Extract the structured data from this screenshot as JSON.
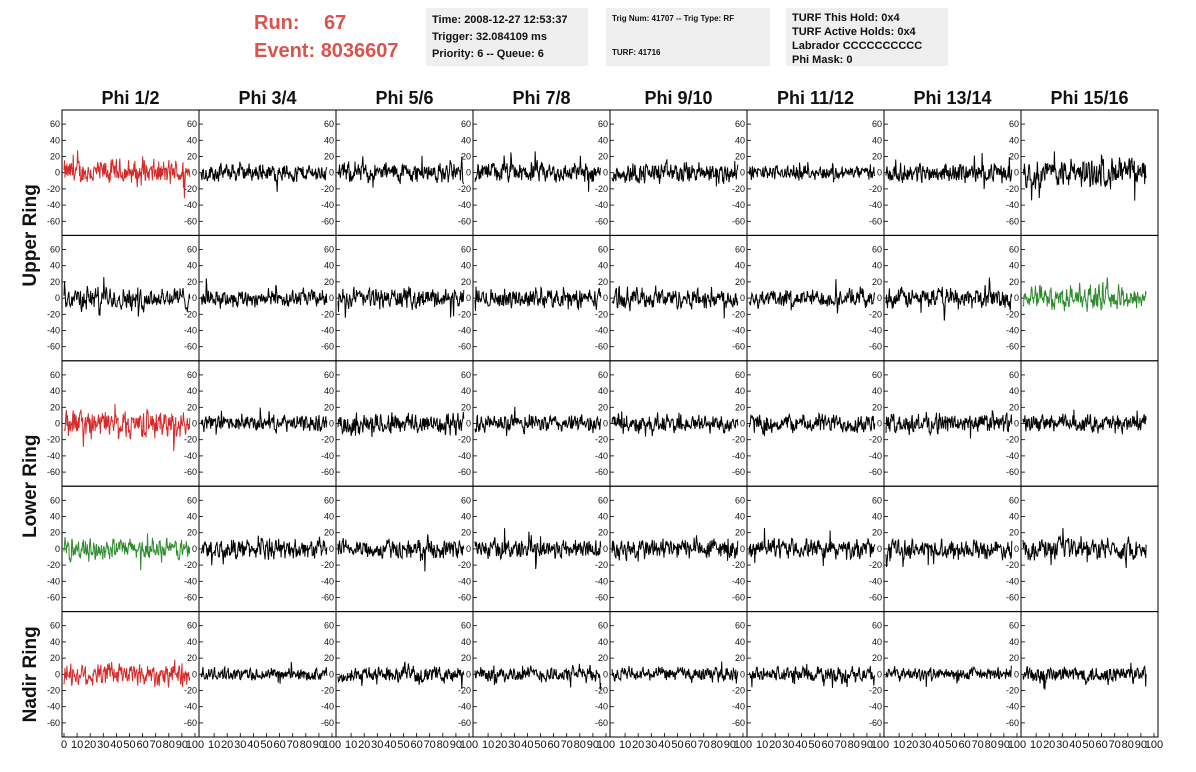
{
  "header": {
    "run_label": "Run:",
    "run_value": "67",
    "event_label": "Event:",
    "event_value": "8036607",
    "time": "Time: 2008-12-27 12:53:37",
    "trigger": "Trigger: 32.084109 ms",
    "priority": "Priority: 6 -- Queue: 6",
    "trig_num": "Trig Num: 41707 -- Trig Type: RF",
    "turf": "TURF: 41716",
    "turf_hold": "TURF This Hold: 0x4",
    "turf_active": "TURF Active Holds: 0x4",
    "labrador": "Labrador CCCCCCCCCC",
    "phi_mask": "Phi Mask: 0"
  },
  "colors": {
    "default": "#000000",
    "red": "#d62a2a",
    "green": "#2e8b2e",
    "accent": "#d9534f"
  },
  "chart_data": {
    "type": "line",
    "description_type": "waveform-grid",
    "columns": [
      "Phi 1/2",
      "Phi 3/4",
      "Phi 5/6",
      "Phi 7/8",
      "Phi 9/10",
      "Phi 11/12",
      "Phi 13/14",
      "Phi 15/16"
    ],
    "ring_labels": [
      "Upper Ring",
      "Lower Ring",
      "Nadir Ring"
    ],
    "rows": 5,
    "ylim": [
      -70,
      70
    ],
    "yticks": [
      -60,
      -40,
      -20,
      0,
      20,
      40,
      60
    ],
    "xlim": [
      0,
      100
    ],
    "xticks": [
      0,
      10,
      20,
      30,
      40,
      50,
      60,
      70,
      80,
      90,
      100
    ],
    "panel_colors": [
      [
        "red",
        "default",
        "default",
        "default",
        "default",
        "default",
        "default",
        "default"
      ],
      [
        "default",
        "default",
        "default",
        "default",
        "default",
        "default",
        "default",
        "green"
      ],
      [
        "red",
        "default",
        "default",
        "default",
        "default",
        "default",
        "default",
        "default"
      ],
      [
        "green",
        "default",
        "default",
        "default",
        "default",
        "default",
        "default",
        "default"
      ],
      [
        "red",
        "default",
        "default",
        "default",
        "default",
        "default",
        "default",
        "default"
      ]
    ],
    "panel_amplitude": [
      [
        18,
        12,
        14,
        14,
        15,
        10,
        13,
        20
      ],
      [
        16,
        12,
        14,
        13,
        14,
        12,
        14,
        16
      ],
      [
        19,
        11,
        16,
        12,
        13,
        13,
        14,
        12
      ],
      [
        14,
        14,
        13,
        14,
        15,
        13,
        13,
        14
      ],
      [
        17,
        9,
        10,
        11,
        10,
        11,
        9,
        12
      ]
    ]
  }
}
